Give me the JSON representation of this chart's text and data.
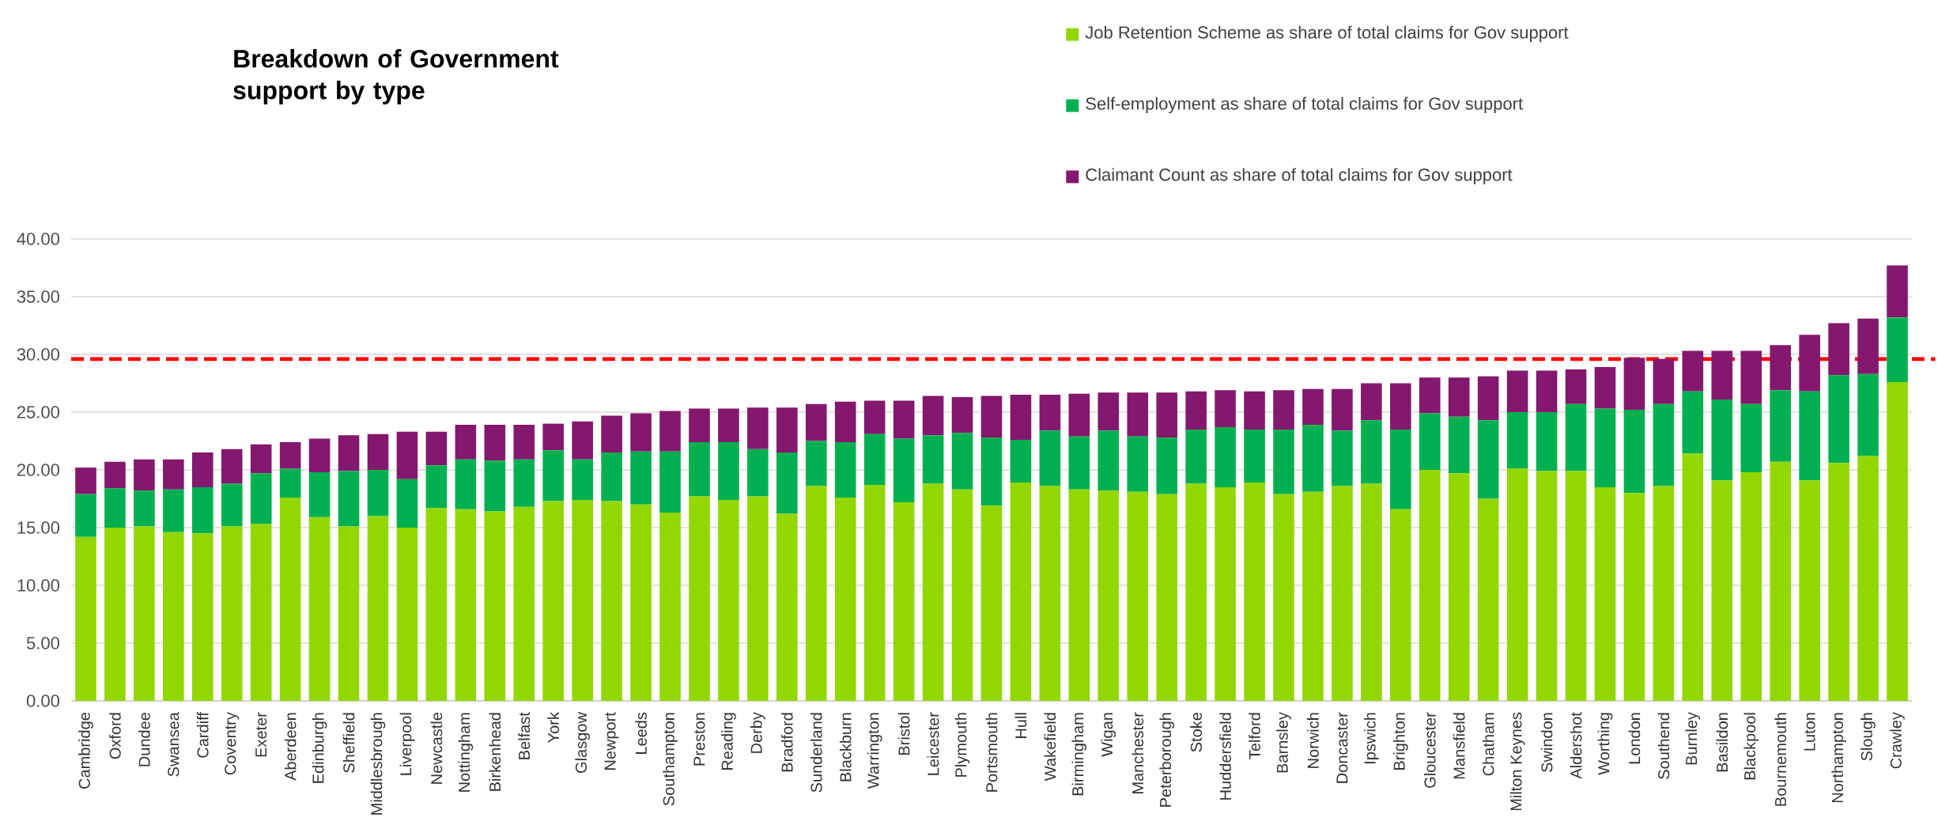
{
  "chart_data": {
    "type": "bar",
    "stacked": true,
    "title": "Breakdown of Government support by type",
    "categories": [
      "Cambridge",
      "Oxford",
      "Dundee",
      "Swansea",
      "Cardiff",
      "Coventry",
      "Exeter",
      "Aberdeen",
      "Edinburgh",
      "Sheffield",
      "Middlesbrough",
      "Liverpool",
      "Newcastle",
      "Nottingham",
      "Birkenhead",
      "Belfast",
      "York",
      "Glasgow",
      "Newport",
      "Leeds",
      "Southampton",
      "Preston",
      "Reading",
      "Derby",
      "Bradford",
      "Sunderland",
      "Blackburn",
      "Warrington",
      "Bristol",
      "Leicester",
      "Plymouth",
      "Portsmouth",
      "Hull",
      "Wakefield",
      "Birmingham",
      "Wigan",
      "Manchester",
      "Peterborough",
      "Stoke",
      "Huddersfield",
      "Telford",
      "Barnsley",
      "Norwich",
      "Doncaster",
      "Ipswich",
      "Brighton",
      "Gloucester",
      "Mansfield",
      "Chatham",
      "Milton Keynes",
      "Swindon",
      "Aldershot",
      "Worthing",
      "London",
      "Southend",
      "Burnley",
      "Basildon",
      "Blackpool",
      "Bournemouth",
      "Luton",
      "Northampton",
      "Slough",
      "Crawley"
    ],
    "series": [
      {
        "name": "Job Retention Scheme as share of total claims for Gov support",
        "color": "#92d700",
        "values": [
          14.2,
          15.0,
          15.1,
          14.6,
          14.5,
          15.1,
          15.3,
          17.6,
          15.9,
          15.1,
          16.0,
          15.0,
          16.7,
          16.6,
          16.4,
          16.8,
          17.3,
          17.4,
          17.3,
          17.0,
          16.3,
          17.7,
          17.4,
          17.7,
          16.2,
          18.6,
          17.6,
          18.7,
          17.2,
          18.8,
          18.3,
          16.9,
          18.9,
          18.6,
          18.3,
          18.2,
          18.1,
          17.9,
          18.8,
          18.5,
          18.9,
          17.9,
          18.1,
          18.6,
          18.8,
          16.6,
          20.0,
          19.7,
          17.5,
          20.1,
          19.9,
          19.9,
          18.5,
          18.0,
          18.6,
          21.4,
          19.1,
          19.8,
          20.7,
          19.1,
          20.6,
          21.2,
          27.6
        ]
      },
      {
        "name": "Self-employment  as share of total claims for Gov support",
        "color": "#00b050",
        "values": [
          3.7,
          3.4,
          3.1,
          3.7,
          4.0,
          3.7,
          4.4,
          2.5,
          3.9,
          4.8,
          4.0,
          4.2,
          3.7,
          4.3,
          4.4,
          4.1,
          4.4,
          3.5,
          4.2,
          4.6,
          5.3,
          4.7,
          5.0,
          4.1,
          5.3,
          3.9,
          4.8,
          4.4,
          5.5,
          4.2,
          4.9,
          5.9,
          3.7,
          4.8,
          4.6,
          5.2,
          4.8,
          4.9,
          4.7,
          5.2,
          4.6,
          5.6,
          5.8,
          4.8,
          5.5,
          6.9,
          4.9,
          4.9,
          6.8,
          4.9,
          5.1,
          5.8,
          6.8,
          7.2,
          7.1,
          5.4,
          7.0,
          5.9,
          6.2,
          7.7,
          7.6,
          7.1,
          5.6
        ]
      },
      {
        "name": "Claimant Count as share of total claims for Gov support",
        "color": "#83186e",
        "values": [
          2.3,
          2.3,
          2.7,
          2.6,
          3.0,
          3.0,
          2.5,
          2.3,
          2.9,
          3.1,
          3.1,
          4.1,
          2.9,
          3.0,
          3.1,
          3.0,
          2.3,
          3.3,
          3.2,
          3.3,
          3.5,
          2.9,
          2.9,
          3.6,
          3.9,
          3.2,
          3.5,
          2.9,
          3.3,
          3.4,
          3.1,
          3.6,
          3.9,
          3.1,
          3.7,
          3.3,
          3.8,
          3.9,
          3.3,
          3.2,
          3.3,
          3.4,
          3.1,
          3.6,
          3.2,
          4.0,
          3.1,
          3.4,
          3.8,
          3.6,
          3.6,
          3.0,
          3.6,
          4.5,
          3.9,
          3.5,
          4.2,
          4.6,
          3.9,
          4.9,
          4.5,
          4.8,
          4.5
        ]
      }
    ],
    "ylim": [
      0,
      40
    ],
    "yticks": [
      {
        "value": 0,
        "label": "0.00"
      },
      {
        "value": 5,
        "label": "5.00"
      },
      {
        "value": 10,
        "label": "10.00"
      },
      {
        "value": 15,
        "label": "15.00"
      },
      {
        "value": 20,
        "label": "20.00"
      },
      {
        "value": 25,
        "label": "25.00"
      },
      {
        "value": 30,
        "label": "30.00"
      },
      {
        "value": 35,
        "label": "35.00"
      },
      {
        "value": 40,
        "label": "40.00"
      }
    ],
    "grid": "y",
    "legend": "top right",
    "ref_lines": [
      {
        "axis": "y",
        "value": 29.6,
        "color": "#ff0000",
        "line_style": "dashed"
      }
    ]
  }
}
